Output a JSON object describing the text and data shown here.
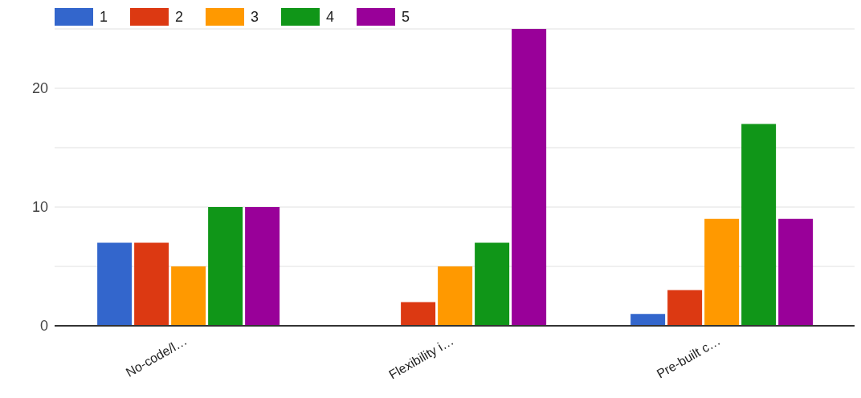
{
  "chart_data": {
    "type": "bar",
    "categories": [
      "No-code/l…",
      "Flexibility i…",
      "Pre-built c…"
    ],
    "series": [
      {
        "name": "1",
        "color": "#3366cc",
        "values": [
          7,
          0,
          1
        ]
      },
      {
        "name": "2",
        "color": "#dc3912",
        "values": [
          7,
          2,
          3
        ]
      },
      {
        "name": "3",
        "color": "#ff9900",
        "values": [
          5,
          5,
          9
        ]
      },
      {
        "name": "4",
        "color": "#109618",
        "values": [
          10,
          7,
          17
        ]
      },
      {
        "name": "5",
        "color": "#990099",
        "values": [
          10,
          25,
          9
        ]
      }
    ],
    "ylim": [
      0,
      25
    ],
    "yticks": [
      0,
      {
        "value": 5,
        "label": null
      },
      10,
      {
        "value": 15,
        "label": null
      },
      20,
      {
        "value": 25,
        "label": null
      }
    ],
    "grid": "y",
    "legend": "top left"
  }
}
